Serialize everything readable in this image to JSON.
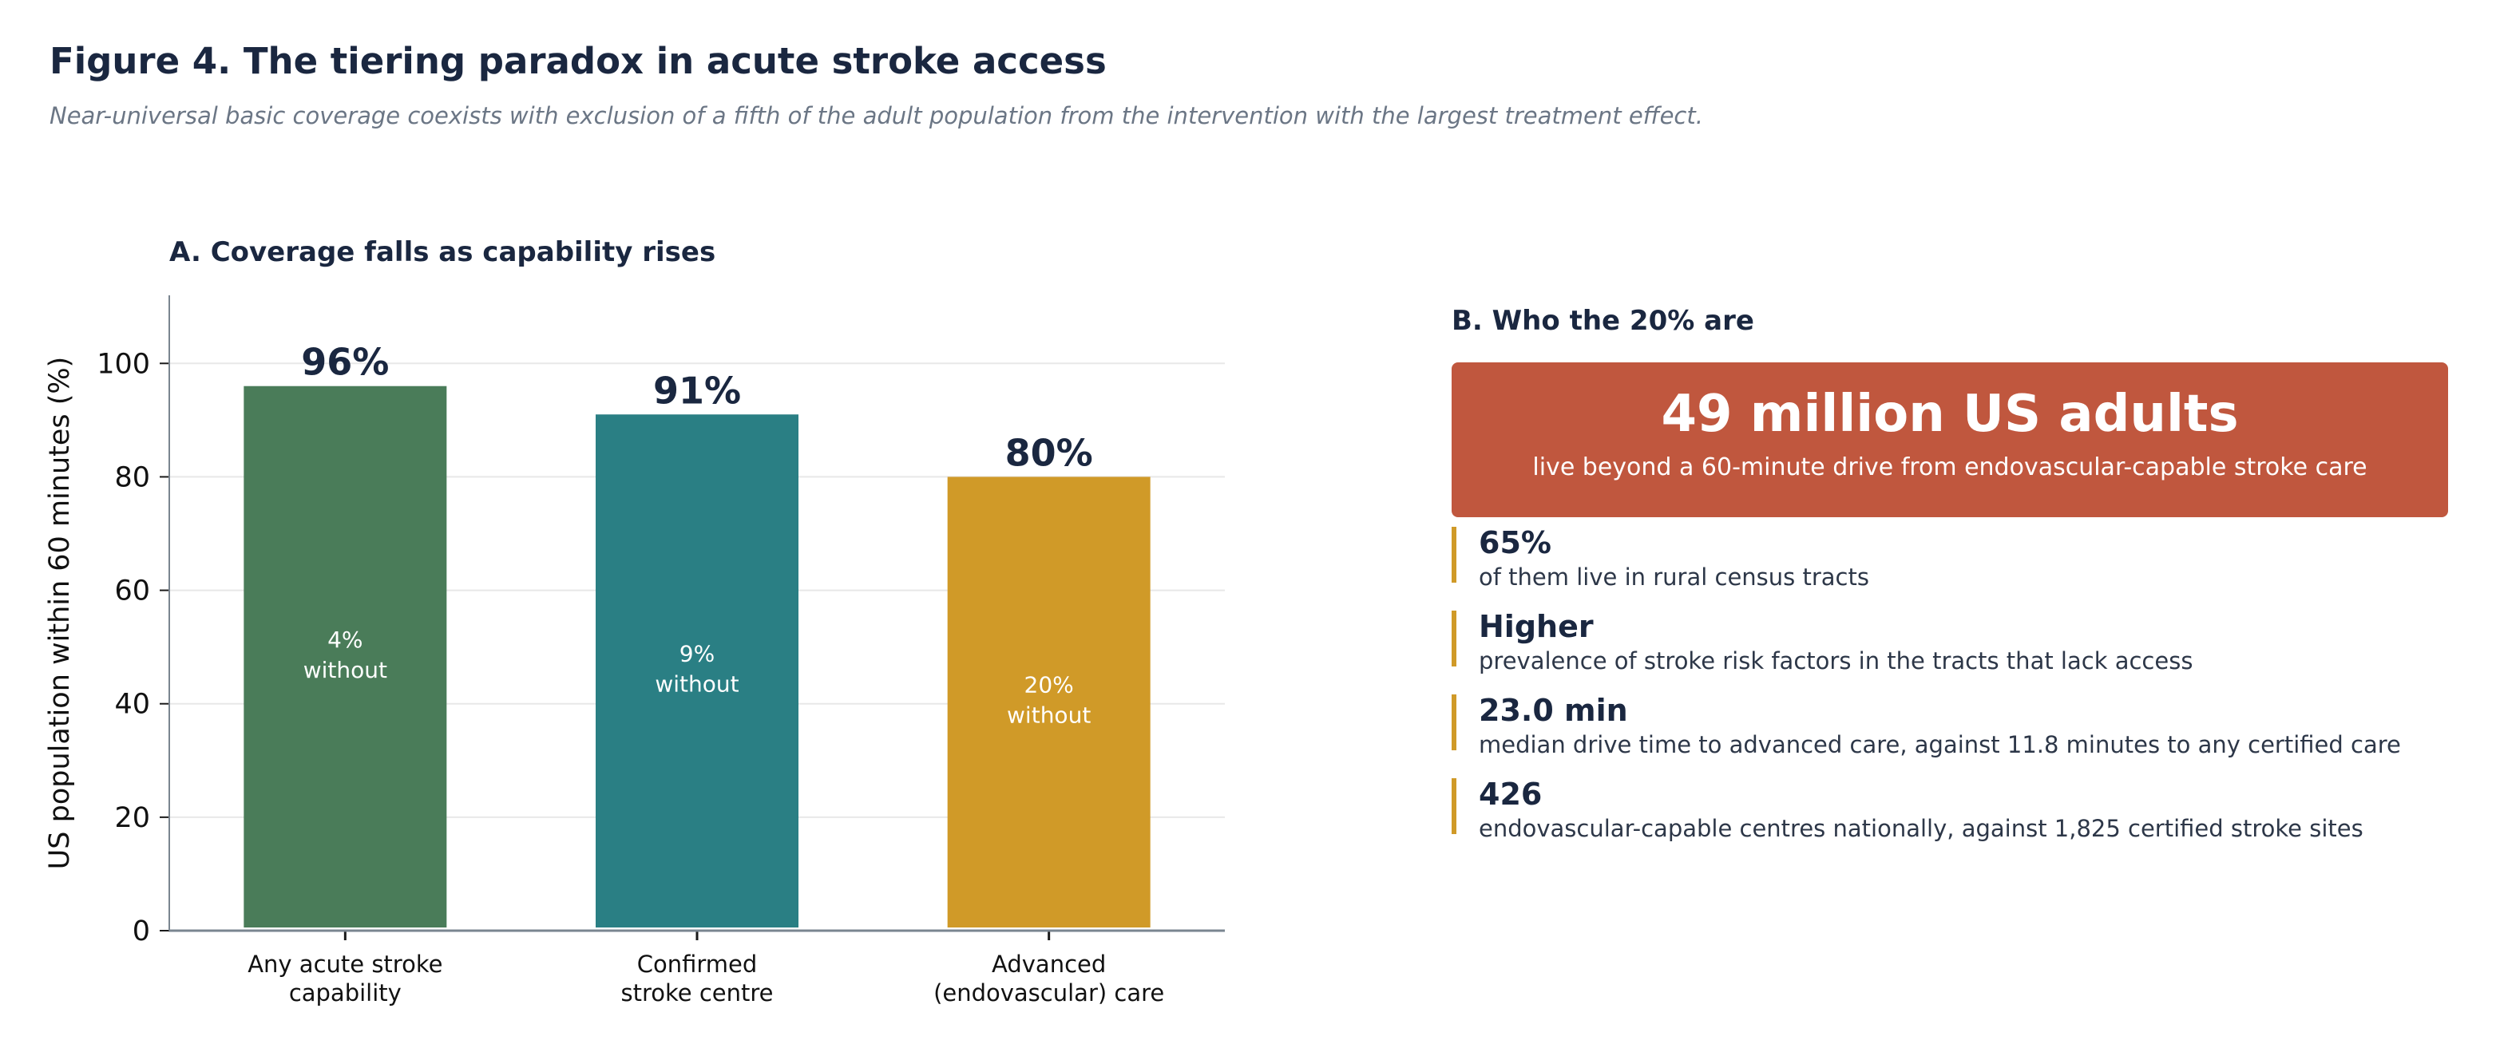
{
  "figure": {
    "title": "Figure 4.  The tiering paradox in acute stroke access",
    "subtitle": "Near-universal basic coverage coexists with exclusion of a fifth of the adult population from the intervention with the largest treatment effect."
  },
  "panel_a": {
    "title": "A.  Coverage falls as capability rises"
  },
  "chart_data": {
    "type": "bar",
    "title": "A.  Coverage falls as capability rises",
    "categories": [
      [
        "Any acute stroke",
        "capability"
      ],
      [
        "Confirmed",
        "stroke centre"
      ],
      [
        "Advanced",
        "(endovascular) care"
      ]
    ],
    "values": [
      96,
      91,
      80
    ],
    "value_labels": [
      "96%",
      "91%",
      "80%"
    ],
    "inner_labels": [
      [
        "4%",
        "without"
      ],
      [
        "9%",
        "without"
      ],
      [
        "20%",
        "without"
      ]
    ],
    "colors": [
      "#4a7c59",
      "#2a7f84",
      "#d09a28"
    ],
    "ylabel": "US population within 60 minutes (%)",
    "xlabel": "",
    "ylim": [
      0,
      112
    ],
    "yticks": [
      0,
      20,
      40,
      60,
      80,
      100
    ],
    "grid": true
  },
  "panel_b": {
    "title": "B.  Who the 20% are",
    "callout": {
      "headline": "49 million US adults",
      "subtext": "live beyond a 60-minute drive from endovascular-capable stroke care",
      "color": "#c0573e"
    },
    "accent_color": "#d09a28",
    "stats": [
      {
        "value": "65%",
        "desc": "of them live in rural census tracts"
      },
      {
        "value": "Higher",
        "desc": "prevalence of stroke risk factors in the tracts that lack access"
      },
      {
        "value": "23.0 min",
        "desc": "median drive time to advanced care, against 11.8 minutes to any certified care"
      },
      {
        "value": "426",
        "desc": "endovascular-capable centres nationally, against 1,825 certified stroke sites"
      }
    ]
  }
}
